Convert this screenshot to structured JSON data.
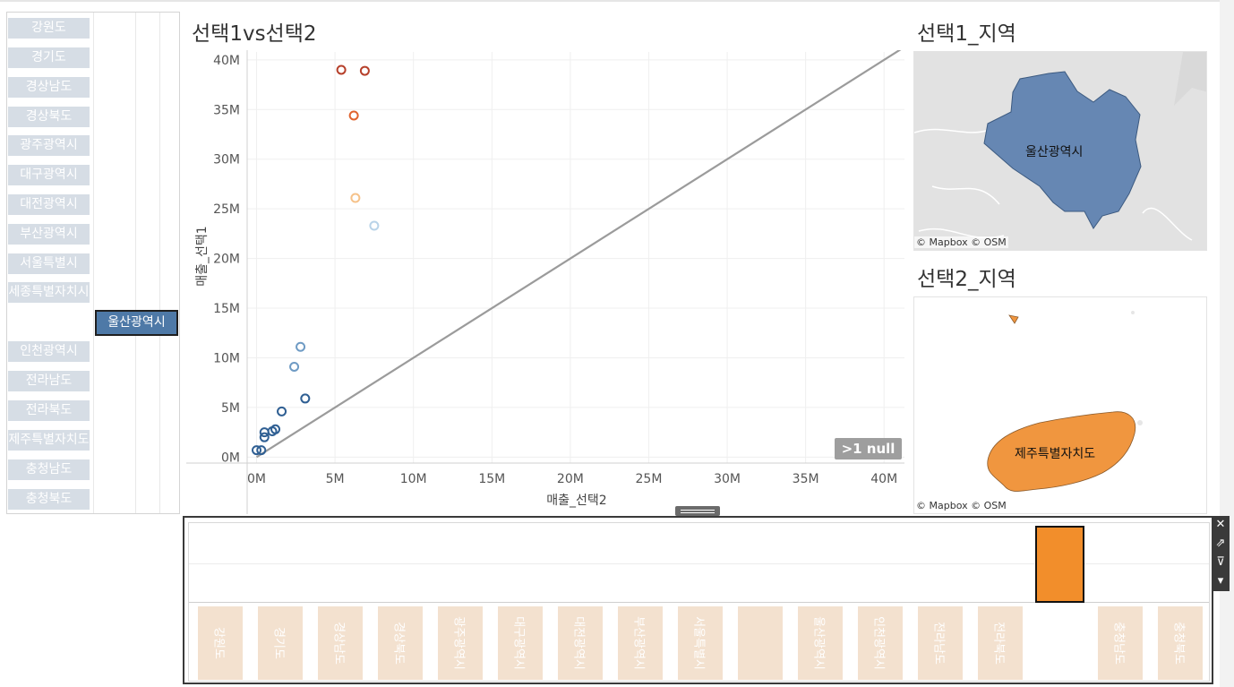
{
  "regions": {
    "buttons": [
      "강원도",
      "경기도",
      "경상남도",
      "경상북도",
      "광주광역시",
      "대구광역시",
      "대전광역시",
      "부산광역시",
      "서울특별시",
      "세종특별자치시",
      "인천광역시",
      "전라남도",
      "전라북도",
      "제주특별자치도",
      "충청남도",
      "충청북도"
    ],
    "selected": "울산광역시"
  },
  "scatter": {
    "title": "선택1vs선택2",
    "null_badge": ">1 null",
    "ref_line_color": "#9b9b9b"
  },
  "chart_data": {
    "type": "scatter",
    "xlabel": "매출_선택2",
    "ylabel": "매출_선택1",
    "xlim": [
      -0.6,
      41.3
    ],
    "ylim": [
      -0.6,
      40.8
    ],
    "x_ticks": [
      "0M",
      "5M",
      "10M",
      "15M",
      "20M",
      "25M",
      "30M",
      "35M",
      "40M"
    ],
    "y_ticks": [
      "0M",
      "5M",
      "10M",
      "15M",
      "20M",
      "25M",
      "30M",
      "35M",
      "40M"
    ],
    "unit": "M",
    "points": [
      {
        "x": 5.4,
        "y": 39.0,
        "color": "#b6402b"
      },
      {
        "x": 6.9,
        "y": 38.9,
        "color": "#b6402b"
      },
      {
        "x": 6.2,
        "y": 34.4,
        "color": "#e0632e"
      },
      {
        "x": 6.3,
        "y": 26.1,
        "color": "#f6c28a"
      },
      {
        "x": 7.5,
        "y": 23.3,
        "color": "#b9d3e8"
      },
      {
        "x": 2.8,
        "y": 11.1,
        "color": "#6f9bc4"
      },
      {
        "x": 2.4,
        "y": 9.1,
        "color": "#6f9bc4"
      },
      {
        "x": 3.1,
        "y": 5.9,
        "color": "#2f5f93"
      },
      {
        "x": 1.6,
        "y": 4.6,
        "color": "#2f5f93"
      },
      {
        "x": 1.2,
        "y": 2.8,
        "color": "#2f5f93"
      },
      {
        "x": 1.0,
        "y": 2.6,
        "color": "#2f5f93"
      },
      {
        "x": 0.5,
        "y": 2.5,
        "color": "#2f5f93"
      },
      {
        "x": 0.5,
        "y": 2.0,
        "color": "#2f5f93"
      },
      {
        "x": 0.3,
        "y": 0.7,
        "color": "#2f5f93"
      },
      {
        "x": 0.0,
        "y": 0.7,
        "color": "#2f5f93"
      }
    ],
    "reference_line": [
      [
        0,
        0
      ],
      [
        41.3,
        41.3
      ]
    ]
  },
  "map1": {
    "title": "선택1_지역",
    "region_label": "울산광역시",
    "region_color": "#6687b3",
    "credit": "© Mapbox © OSM"
  },
  "map2": {
    "title": "선택2_지역",
    "region_label": "제주특별자치도",
    "region_color": "#f0963f",
    "credit": "© Mapbox © OSM"
  },
  "bottom": {
    "highlight_color": "#f28e2b",
    "cells": [
      "강원도",
      "경기도",
      "경상남도",
      "경상북도",
      "광주광역시",
      "대구광역시",
      "대전광역시",
      "부산광역시",
      "서울특별시",
      "",
      "울산광역시",
      "인천광역시",
      "전라남도",
      "전라북도",
      "",
      "충청남도",
      "충청북도"
    ]
  },
  "toolbar": {
    "icons": [
      "close-icon",
      "open-external-icon",
      "filter-icon",
      "dropdown-arrow-icon"
    ],
    "glyphs": [
      "✕",
      "⇗",
      "⊽",
      "▾"
    ]
  }
}
